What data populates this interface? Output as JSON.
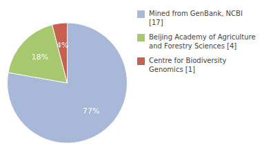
{
  "chart_data": {
    "type": "pie",
    "categories": [
      "Mined from GenBank, NCBI [17]",
      "Beijing Academy of Agriculture\nand Forestry Sciences [4]",
      "Centre for Biodiversity\nGenomics [1]"
    ],
    "values": [
      77,
      18,
      4
    ],
    "value_labels": [
      "77%",
      "18%",
      "4%"
    ],
    "colors": [
      "#a8b8d8",
      "#a8c870",
      "#c86050"
    ],
    "data_labels": true,
    "legend": "right"
  }
}
